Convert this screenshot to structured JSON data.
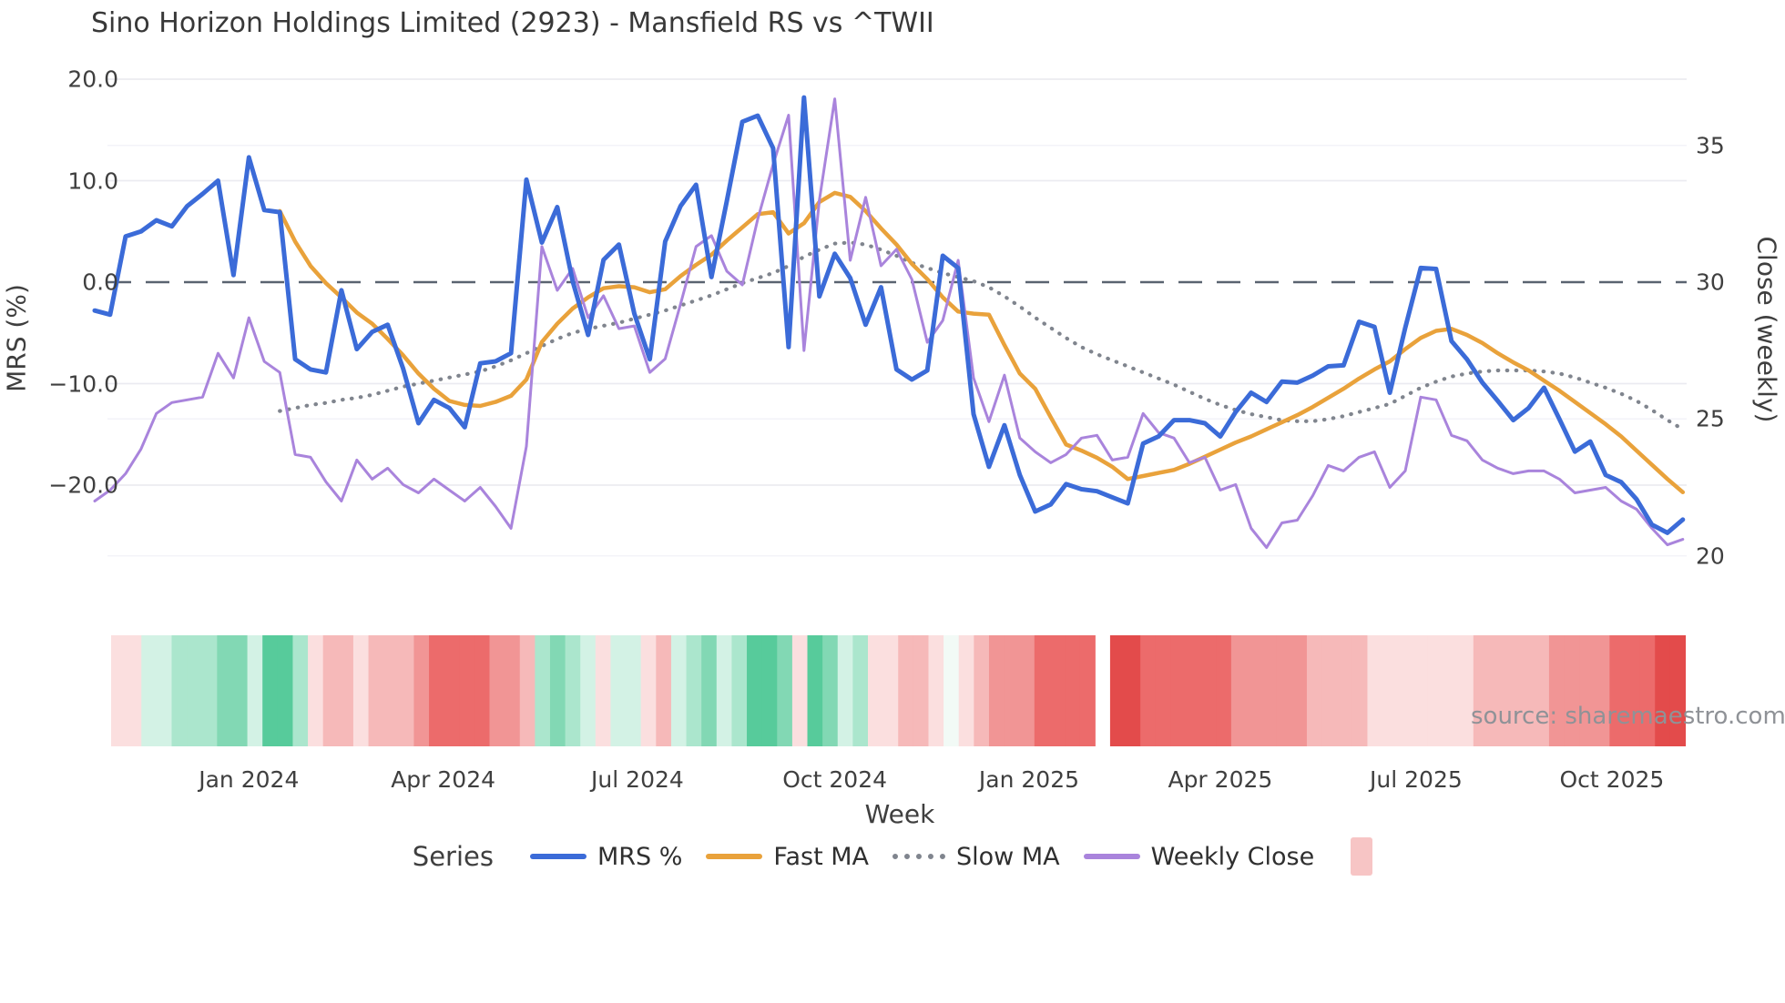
{
  "title": "Sino Horizon Holdings Limited (2923) - Mansfield RS vs ^TWII",
  "source_label": "source: sharemaestro.com",
  "legend": {
    "title": "Series",
    "items": [
      {
        "label": "MRS %",
        "color": "#3b6bd8",
        "style": "solid"
      },
      {
        "label": "Fast MA",
        "color": "#e9a23b",
        "style": "solid"
      },
      {
        "label": "Slow MA",
        "color": "#80858e",
        "style": "dotted"
      },
      {
        "label": "Weekly Close",
        "color": "#a984dc",
        "style": "solid"
      }
    ],
    "heat_swatch_color": "#f7c5c5"
  },
  "chart_data": {
    "type": "line",
    "title": "Sino Horizon Holdings Limited (2923) - Mansfield RS vs ^TWII",
    "xlabel": "Week",
    "x_unit": "week",
    "n_points": 104,
    "x_tick_labels": [
      {
        "label": "Jan 2024",
        "week": 10.0
      },
      {
        "label": "Apr 2024",
        "week": 22.6
      },
      {
        "label": "Jul 2024",
        "week": 35.2
      },
      {
        "label": "Oct 2024",
        "week": 48.0
      },
      {
        "label": "Jan 2025",
        "week": 60.6
      },
      {
        "label": "Apr 2025",
        "week": 73.0
      },
      {
        "label": "Jul 2025",
        "week": 85.7
      },
      {
        "label": "Oct 2025",
        "week": 98.4
      }
    ],
    "left_axis": {
      "label": "MRS (%)",
      "tick_labels": [
        "20.0",
        "10.0",
        "0.0",
        "−10.0",
        "−20.0"
      ],
      "tick_values": [
        20,
        10,
        0,
        -10,
        -20
      ],
      "zero_line": {
        "value": 0,
        "style": "dashed",
        "color": "#5a6370"
      }
    },
    "right_axis": {
      "label": "Close (weekly)",
      "tick_labels": [
        "35",
        "30",
        "25",
        "20"
      ],
      "tick_values": [
        35,
        30,
        25,
        20
      ]
    },
    "grid": true,
    "legend_position": "bottom",
    "series": [
      {
        "name": "MRS %",
        "axis": "left",
        "color": "#3b6bd8",
        "style": "solid",
        "width": 5,
        "values": [
          -2.8,
          -3.2,
          4.5,
          5.0,
          6.1,
          5.5,
          7.5,
          8.7,
          10.0,
          0.7,
          12.3,
          7.1,
          6.9,
          -7.6,
          -8.6,
          -8.9,
          -0.8,
          -6.6,
          -4.9,
          -4.2,
          -8.5,
          -13.9,
          -11.6,
          -12.4,
          -14.3,
          -8.0,
          -7.8,
          -7.0,
          10.1,
          3.9,
          7.4,
          0.1,
          -5.2,
          2.2,
          3.7,
          -3.1,
          -7.6,
          4.0,
          7.5,
          9.6,
          0.5,
          8.0,
          15.8,
          16.4,
          13.2,
          -6.4,
          18.2,
          -1.4,
          2.8,
          0.4,
          -4.2,
          -0.5,
          -8.6,
          -9.6,
          -8.7,
          2.6,
          1.4,
          -13.0,
          -18.2,
          -14.1,
          -19.0,
          -22.6,
          -21.9,
          -19.9,
          -20.4,
          -20.6,
          -21.2,
          -21.8,
          -15.9,
          -15.2,
          -13.6,
          -13.6,
          -13.9,
          -15.2,
          -12.8,
          -10.9,
          -11.8,
          -9.8,
          -9.9,
          -9.2,
          -8.3,
          -8.2,
          -3.9,
          -4.4,
          -10.9,
          -4.5,
          1.4,
          1.3,
          -5.8,
          -7.6,
          -9.9,
          -11.7,
          -13.6,
          -12.4,
          -10.4,
          -13.5,
          -16.7,
          -15.7,
          -19.0,
          -19.7,
          -21.4,
          -23.9,
          -24.7,
          -23.4
        ]
      },
      {
        "name": "Fast MA",
        "axis": "left",
        "color": "#e9a23b",
        "style": "solid",
        "width": 4.5,
        "values": [
          null,
          null,
          null,
          null,
          null,
          null,
          null,
          null,
          null,
          null,
          null,
          null,
          7.0,
          4.0,
          1.6,
          -0.1,
          -1.5,
          -3.0,
          -4.1,
          -5.6,
          -7.2,
          -9.0,
          -10.5,
          -11.7,
          -12.1,
          -12.2,
          -11.8,
          -11.2,
          -9.6,
          -5.9,
          -4.1,
          -2.6,
          -1.5,
          -0.6,
          -0.4,
          -0.5,
          -1.0,
          -0.7,
          0.6,
          1.7,
          2.7,
          4.1,
          5.4,
          6.7,
          6.9,
          4.8,
          5.8,
          7.9,
          8.8,
          8.4,
          7.0,
          5.3,
          3.7,
          1.8,
          0.3,
          -1.5,
          -2.9,
          -3.1,
          -3.2,
          -6.2,
          -9.0,
          -10.5,
          -13.3,
          -16.0,
          -16.6,
          -17.3,
          -18.2,
          -19.4,
          -19.1,
          -18.8,
          -18.5,
          -17.9,
          -17.2,
          -16.5,
          -15.8,
          -15.2,
          -14.5,
          -13.8,
          -13.1,
          -12.3,
          -11.4,
          -10.5,
          -9.5,
          -8.6,
          -7.8,
          -6.6,
          -5.5,
          -4.8,
          -4.6,
          -5.2,
          -6.0,
          -7.0,
          -7.9,
          -8.7,
          -9.7,
          -10.7,
          -11.8,
          -12.9,
          -14.0,
          -15.2,
          -16.6,
          -18.0,
          -19.4,
          -20.7
        ]
      },
      {
        "name": "Slow MA",
        "axis": "left",
        "color": "#80858e",
        "style": "dotted",
        "width": 4.2,
        "values": [
          null,
          null,
          null,
          null,
          null,
          null,
          null,
          null,
          null,
          null,
          null,
          null,
          -12.7,
          -12.4,
          -12.1,
          -11.9,
          -11.6,
          -11.4,
          -11.1,
          -10.7,
          -10.3,
          -10.0,
          -9.7,
          -9.4,
          -9.1,
          -8.8,
          -8.3,
          -7.7,
          -7.0,
          -6.3,
          -5.6,
          -5.0,
          -4.6,
          -4.3,
          -4.0,
          -3.6,
          -3.2,
          -2.8,
          -2.3,
          -1.8,
          -1.3,
          -0.7,
          -0.1,
          0.4,
          0.9,
          1.6,
          2.5,
          3.2,
          3.8,
          3.9,
          3.7,
          3.2,
          2.6,
          1.9,
          1.4,
          0.9,
          0.5,
          0.1,
          -0.5,
          -1.4,
          -2.4,
          -3.5,
          -4.5,
          -5.5,
          -6.4,
          -7.1,
          -7.7,
          -8.3,
          -8.9,
          -9.5,
          -10.1,
          -10.8,
          -11.5,
          -12.1,
          -12.6,
          -13.0,
          -13.3,
          -13.6,
          -13.7,
          -13.7,
          -13.5,
          -13.2,
          -12.8,
          -12.4,
          -12.0,
          -11.2,
          -10.4,
          -9.8,
          -9.3,
          -9.0,
          -8.8,
          -8.7,
          -8.7,
          -8.7,
          -8.8,
          -9.0,
          -9.4,
          -9.9,
          -10.4,
          -11.0,
          -11.7,
          -12.6,
          -13.6,
          -14.5
        ]
      },
      {
        "name": "Weekly Close",
        "axis": "right",
        "color": "#a984dc",
        "style": "solid",
        "width": 3,
        "values": [
          22.0,
          22.4,
          23.0,
          23.9,
          25.2,
          25.6,
          25.7,
          25.8,
          27.4,
          26.5,
          28.7,
          27.1,
          26.7,
          23.7,
          23.6,
          22.7,
          22.0,
          23.5,
          22.8,
          23.2,
          22.6,
          22.3,
          22.8,
          22.4,
          22.0,
          22.5,
          21.8,
          21.0,
          24.0,
          31.3,
          29.7,
          30.5,
          28.7,
          29.5,
          28.3,
          28.4,
          26.7,
          27.2,
          29.2,
          31.3,
          31.7,
          30.4,
          29.9,
          32.3,
          34.3,
          36.1,
          27.5,
          33.0,
          36.7,
          30.8,
          33.1,
          30.6,
          31.2,
          30.1,
          27.8,
          28.6,
          30.8,
          26.5,
          24.9,
          26.6,
          24.3,
          23.8,
          23.4,
          23.7,
          24.3,
          24.4,
          23.5,
          23.6,
          25.2,
          24.5,
          24.3,
          23.4,
          23.6,
          22.4,
          22.6,
          21.0,
          20.3,
          21.2,
          21.3,
          22.2,
          23.3,
          23.1,
          23.6,
          23.8,
          22.5,
          23.1,
          25.8,
          25.7,
          24.4,
          24.2,
          23.5,
          23.2,
          23.0,
          23.1,
          23.1,
          22.8,
          22.3,
          22.4,
          22.5,
          22.0,
          21.7,
          21.0,
          20.4,
          20.6
        ]
      }
    ],
    "heatmap": {
      "description": "weekly strength strip under chart; green = positive, red = negative, blank = missing week",
      "palette": {
        "5": "#34bd8d",
        "4": "#57cb9b",
        "3": "#82d8b4",
        "2": "#abe6cd",
        "1": "#d3f2e5",
        "0": "#f2faf6",
        "-1": "#fbdfdf",
        "-2": "#f6b9b9",
        "-3": "#f19595",
        "-4": "#ec6b6b",
        "-5": "#e34b4b"
      },
      "levels": [
        -1,
        -1,
        1,
        1,
        2,
        2,
        2,
        3,
        3,
        1,
        4,
        4,
        2,
        -1,
        -2,
        -2,
        -1,
        -2,
        -2,
        -2,
        -3,
        -4,
        -4,
        -4,
        -4,
        -3,
        -3,
        -2,
        2,
        3,
        2,
        1,
        -1,
        1,
        1,
        -1,
        -2,
        1,
        2,
        3,
        1,
        2,
        4,
        4,
        3,
        -1,
        4,
        3,
        1,
        2,
        -1,
        -1,
        -2,
        -2,
        -1,
        0,
        -1,
        -2,
        -3,
        -3,
        -3,
        -4,
        -4,
        -4,
        -4,
        null,
        -5,
        -5,
        -4,
        -4,
        -4,
        -4,
        -4,
        -4,
        -3,
        -3,
        -3,
        -3,
        -3,
        -2,
        -2,
        -2,
        -2,
        -1,
        -1,
        -1,
        -1,
        -1,
        -1,
        -1,
        -2,
        -2,
        -2,
        -2,
        -2,
        -3,
        -3,
        -3,
        -3,
        -4,
        -4,
        -4,
        -5,
        -5
      ],
      "missing_weeks": [
        65
      ]
    }
  }
}
